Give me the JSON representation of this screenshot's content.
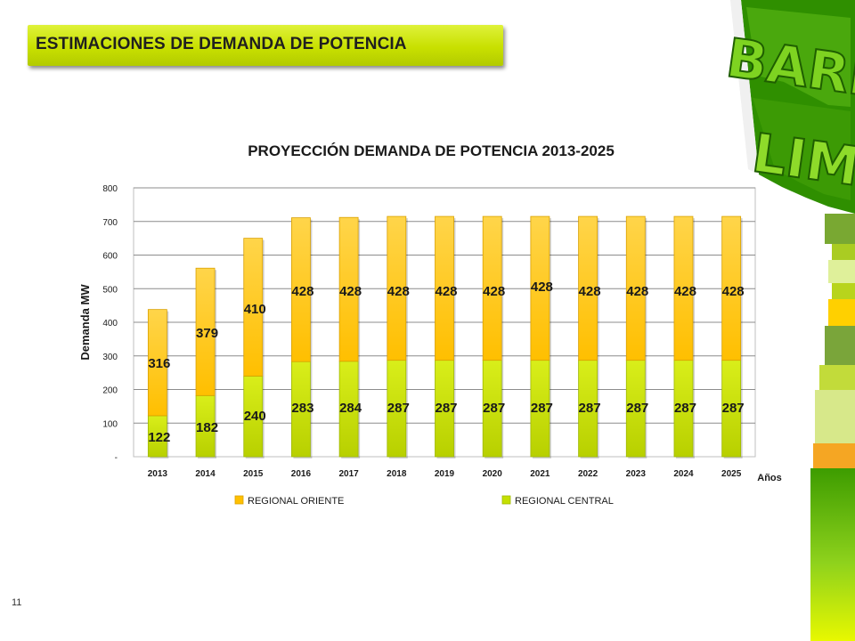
{
  "slide": {
    "banner_title": "ESTIMACIONES DE DEMANDA DE POTENCIA",
    "page_number": "11",
    "brand_text": "BARI LIM"
  },
  "colors": {
    "banner": "#c8e000",
    "regional_oriente": "#ffc000",
    "regional_central": "#c5e000",
    "brand_green_dark": "#2e8b00",
    "brand_green_light": "#66c31a"
  },
  "chart_data": {
    "type": "bar",
    "stacked": true,
    "title": "PROYECCIÓN DEMANDA DE POTENCIA 2013-2025",
    "xlabel": "Años",
    "ylabel": "Demanda  MW",
    "ylim": [
      0,
      800
    ],
    "yticks": [
      "-",
      "100",
      "200",
      "300",
      "400",
      "500",
      "600",
      "700",
      "800"
    ],
    "grid": true,
    "legend_position": "bottom",
    "categories": [
      "2013",
      "2014",
      "2015",
      "2016",
      "2017",
      "2018",
      "2019",
      "2020",
      "2021",
      "2022",
      "2023",
      "2024",
      "2025"
    ],
    "series": [
      {
        "name": "REGIONAL CENTRAL",
        "color": "#c5e000",
        "values": [
          122,
          182,
          240,
          283,
          284,
          287,
          287,
          287,
          287,
          287,
          287,
          287,
          287
        ]
      },
      {
        "name": "REGIONAL ORIENTE",
        "color": "#ffc000",
        "values": [
          316,
          379,
          410,
          428,
          428,
          428,
          428,
          428,
          428,
          428,
          428,
          428,
          428
        ]
      }
    ],
    "legend_order": [
      "REGIONAL ORIENTE",
      "REGIONAL CENTRAL"
    ]
  }
}
